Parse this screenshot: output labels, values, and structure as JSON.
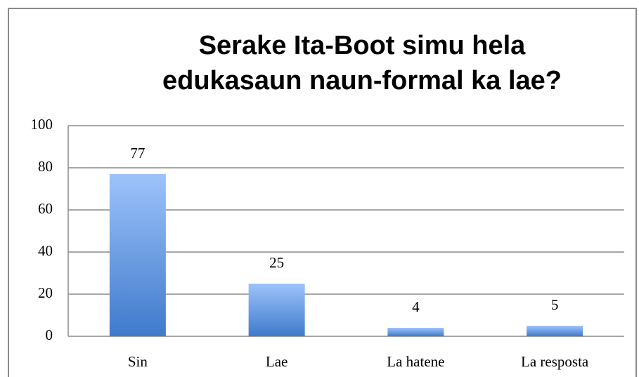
{
  "chart_data": {
    "type": "bar",
    "title": "Serake Ita-Boot simu hela edukasaun naun-formal ka lae?",
    "categories": [
      "Sin",
      "Lae",
      "La hatene",
      "La resposta"
    ],
    "values": [
      77,
      25,
      4,
      5
    ],
    "color": "#4f86d9",
    "ylim": [
      0,
      100
    ],
    "yticks": [
      0,
      20,
      40,
      60,
      80,
      100
    ],
    "grid": true
  }
}
